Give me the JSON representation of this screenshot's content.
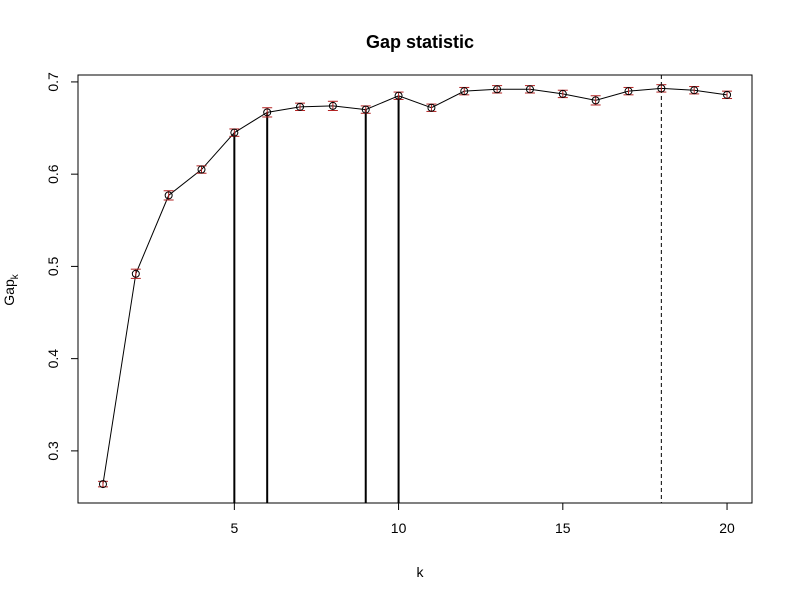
{
  "chart_data": {
    "type": "line",
    "title": "Gap statistic",
    "xlabel": "k",
    "ylabel_main": "Gap",
    "ylabel_sub": "k",
    "xlim": [
      1,
      20
    ],
    "ylim": [
      0.25,
      0.7
    ],
    "x_ticks": [
      5,
      10,
      15,
      20
    ],
    "y_ticks": [
      0.3,
      0.4,
      0.5,
      0.6,
      0.7
    ],
    "grid": false,
    "point_style": "open-circle",
    "errorbar_color": "#b22222",
    "line_color": "#000000",
    "x": [
      1,
      2,
      3,
      4,
      5,
      6,
      7,
      8,
      9,
      10,
      11,
      12,
      13,
      14,
      15,
      16,
      17,
      18,
      19,
      20
    ],
    "values": [
      0.264,
      0.492,
      0.577,
      0.605,
      0.645,
      0.667,
      0.673,
      0.674,
      0.67,
      0.685,
      0.672,
      0.69,
      0.692,
      0.692,
      0.687,
      0.68,
      0.69,
      0.693,
      0.691,
      0.686
    ],
    "se": [
      0.003,
      0.005,
      0.005,
      0.004,
      0.004,
      0.005,
      0.004,
      0.005,
      0.004,
      0.004,
      0.004,
      0.004,
      0.004,
      0.004,
      0.004,
      0.005,
      0.004,
      0.004,
      0.004,
      0.004
    ],
    "solid_vlines_x": [
      5,
      6,
      9,
      10
    ],
    "dashed_vline_x": 18
  }
}
